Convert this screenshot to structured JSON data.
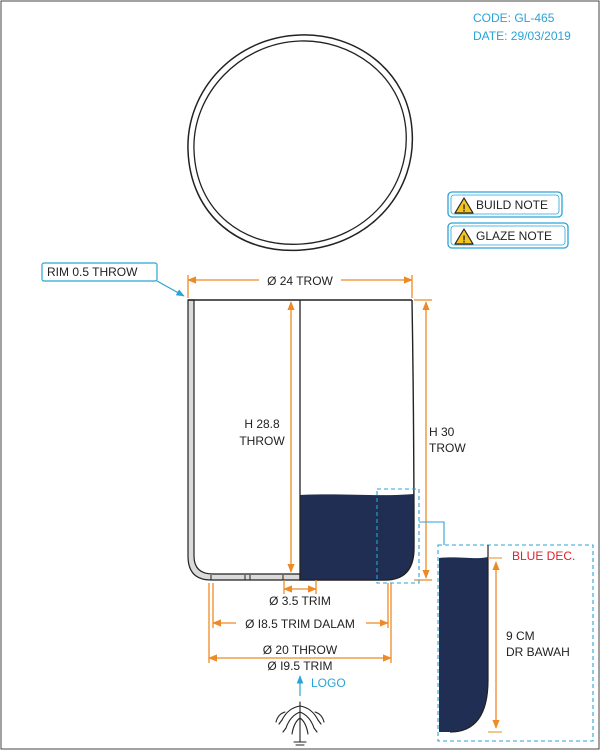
{
  "header": {
    "code": "CODE: GL-465",
    "date": "DATE: 29/03/2019"
  },
  "notes": {
    "build_note": "BUILD NOTE",
    "glaze_note": "GLAZE NOTE",
    "warning_icon": "warning-triangle-icon"
  },
  "callouts": {
    "rim": "RIM 0.5 THROW",
    "blue_dec": "BLUE DEC.",
    "logo": "LOGO"
  },
  "dimensions": {
    "top_width": "Ø 24 TROW",
    "inner_height_line1": "H 28.8",
    "inner_height_line2": "THROW",
    "outer_height_line1": "H 30",
    "outer_height_line2": "TROW",
    "foot_hole": "Ø 3.5 TRIM",
    "inner_trim": "Ø I8.5 TRIM DALAM",
    "base_throw": "Ø 20 THROW",
    "base_trim": "Ø I9.5 TRIM",
    "detail_height_line1": "9 CM",
    "detail_height_line2": "DR BAWAH"
  },
  "colors": {
    "navy_glaze": "#1f2e52",
    "dimension_orange": "#ee8a25",
    "callout_blue": "#2aa3d8",
    "alert_red": "#d9232e",
    "foot_grey": "#dadada",
    "line": "#222222"
  }
}
